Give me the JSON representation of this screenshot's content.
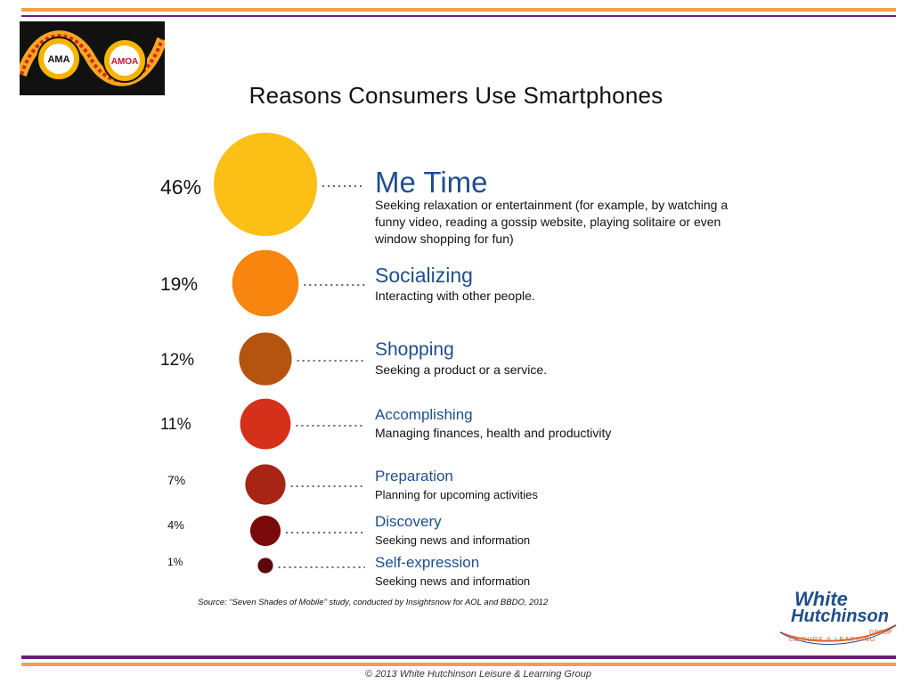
{
  "header": {
    "logo": {
      "badge_left": "AMA",
      "badge_right": "AMOA",
      "arc_top": "LAS VEGAS, NV",
      "arc_bottom": "MARCH 20-22"
    }
  },
  "colors": {
    "top_rule_orange": "#f0a04b",
    "top_rule_purple": "#6a1f7a",
    "title_blue": "#1f4e8c",
    "dots": "#666666"
  },
  "chart_data": {
    "type": "bubble",
    "title": "Reasons Consumers Use Smartphones",
    "unit": "%",
    "rows": [
      {
        "value": 46,
        "label": "46%",
        "name": "Me Time",
        "desc": "Seeking relaxation or entertainment (for example, by watching a funny video, reading a gossip website, playing solitaire or even window shopping for fun)",
        "color": "#fbbf16"
      },
      {
        "value": 19,
        "label": "19%",
        "name": "Socializing",
        "desc": "Interacting with other people.",
        "color": "#f8850d"
      },
      {
        "value": 12,
        "label": "12%",
        "name": "Shopping",
        "desc": "Seeking a product or a service.",
        "color": "#b55410"
      },
      {
        "value": 11,
        "label": "11%",
        "name": "Accomplishing",
        "desc": "Managing finances, health and productivity",
        "color": "#d5301a"
      },
      {
        "value": 7,
        "label": "7%",
        "name": "Preparation",
        "desc": "Planning for upcoming activities",
        "color": "#a82415"
      },
      {
        "value": 4,
        "label": "4%",
        "name": "Discovery",
        "desc": "Seeking news and information",
        "color": "#7a0a0a"
      },
      {
        "value": 1,
        "label": "1%",
        "name": "Self-expression",
        "desc": "Seeking news and information",
        "color": "#5a0909"
      }
    ],
    "source": "Source: “Seven Shades of Mobile” study, conducted by Insightsnow for AOL and BBDO, 2012"
  },
  "footer": {
    "brand_line1": "White",
    "brand_line2": "Hutchinson",
    "brand_tagline": "LEISURE & LEARNING",
    "brand_group": "GROUP",
    "copyright": "© 2013 White Hutchinson Leisure & Learning Group"
  }
}
